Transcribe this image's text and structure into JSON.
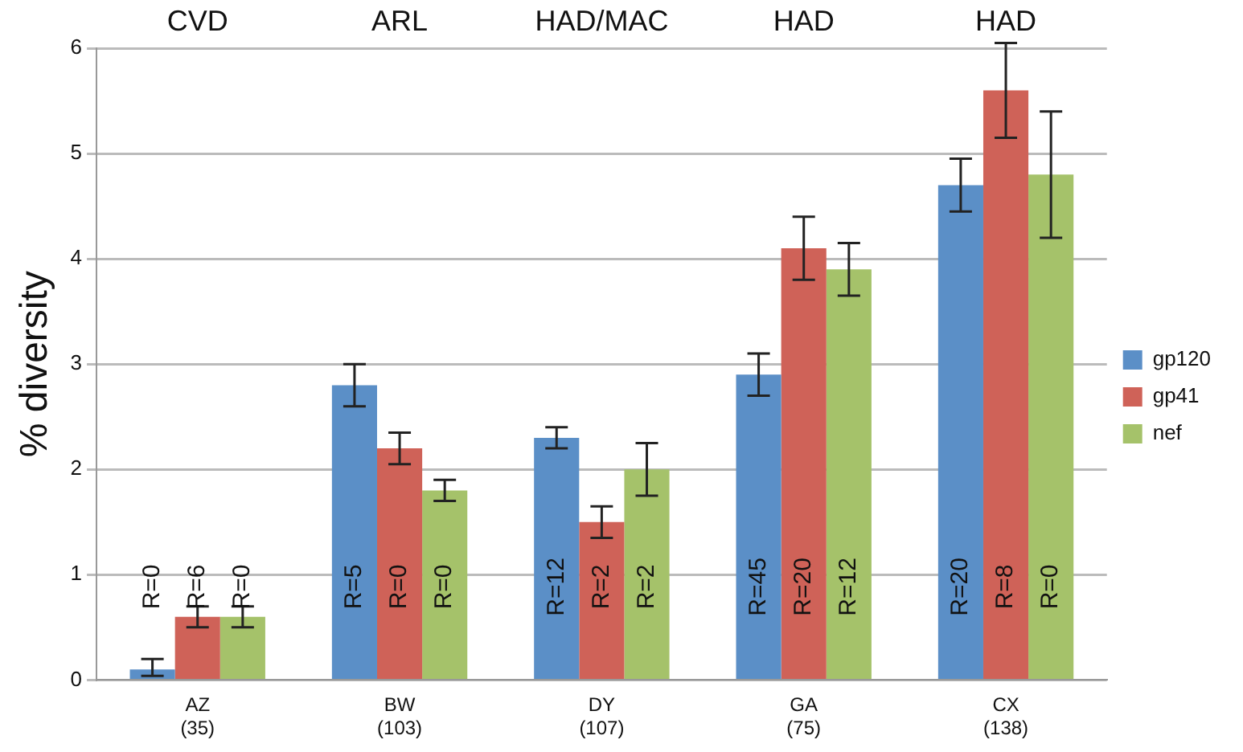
{
  "chart_data": {
    "type": "bar",
    "ylabel": "% diversity",
    "categories": [
      "AZ\n(35)",
      "BW\n(103)",
      "DY\n(107)",
      "GA\n(75)",
      "CX\n(138)"
    ],
    "series": [
      {
        "name": "gp120",
        "color": "#5b8fc7",
        "values": [
          0.1,
          2.8,
          2.3,
          2.9,
          4.7
        ],
        "errors": [
          [
            0.04,
            0.2
          ],
          0.2,
          0.1,
          0.2,
          0.25
        ]
      },
      {
        "name": "gp41",
        "color": "#cf6258",
        "values": [
          0.6,
          2.2,
          1.5,
          4.1,
          5.6
        ],
        "errors": [
          0.1,
          0.15,
          0.15,
          0.3,
          0.45
        ]
      },
      {
        "name": "nef",
        "color": "#a5c26a",
        "values": [
          0.6,
          1.8,
          2.0,
          3.9,
          4.8
        ],
        "errors": [
          0.1,
          0.1,
          0.25,
          0.25,
          0.6
        ]
      }
    ],
    "annotations": [
      "CVD",
      "ARL",
      "HAD/MAC",
      "HAD",
      "HAD",
      "R=0",
      "R=6",
      "R=0",
      "R=5",
      "R=0",
      "R=0",
      "R=12",
      "R=2",
      "R=2",
      "R=45",
      "R=20",
      "R=12",
      "R=20",
      "R=8",
      "R=0"
    ],
    "ylim": [
      0,
      6
    ],
    "yticks": [
      0,
      1,
      2,
      3,
      4,
      5,
      6
    ],
    "grid": "y",
    "legend": "right"
  }
}
